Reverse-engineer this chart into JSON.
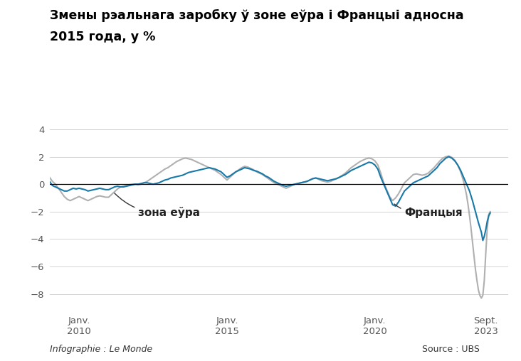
{
  "title_line1": "Змены рэальнага заробку ў зоне еўра і Францыі адносна",
  "title_line2": "2015 года, у %",
  "xlabel_ticks": [
    {
      "label": "Janv.\n2010",
      "x": 2010.0
    },
    {
      "label": "Janv.\n2015",
      "x": 2015.0
    },
    {
      "label": "Janv.\n2020",
      "x": 2020.0
    },
    {
      "label": "Sept.\n2023",
      "x": 2023.75
    }
  ],
  "yticks": [
    4,
    2,
    0,
    -2,
    -4,
    -6,
    -8
  ],
  "ylim": [
    -9.2,
    5.0
  ],
  "xlim": [
    2009.0,
    2024.5
  ],
  "color_eurozone": "#1878a8",
  "color_france": "#b0b0b0",
  "label_eurozone": "зона еўра",
  "label_france": "Францыя",
  "footer_left": "Infographie : Le Monde",
  "footer_right": "Source : UBS",
  "eurozone_data": [
    [
      2009.0,
      0.2
    ],
    [
      2009.1,
      -0.1
    ],
    [
      2009.2,
      -0.2
    ],
    [
      2009.3,
      -0.3
    ],
    [
      2009.4,
      -0.4
    ],
    [
      2009.5,
      -0.5
    ],
    [
      2009.6,
      -0.5
    ],
    [
      2009.7,
      -0.4
    ],
    [
      2009.8,
      -0.3
    ],
    [
      2009.9,
      -0.35
    ],
    [
      2010.0,
      -0.3
    ],
    [
      2010.1,
      -0.35
    ],
    [
      2010.2,
      -0.4
    ],
    [
      2010.3,
      -0.5
    ],
    [
      2010.4,
      -0.45
    ],
    [
      2010.5,
      -0.4
    ],
    [
      2010.6,
      -0.35
    ],
    [
      2010.7,
      -0.3
    ],
    [
      2010.8,
      -0.35
    ],
    [
      2010.9,
      -0.4
    ],
    [
      2011.0,
      -0.4
    ],
    [
      2011.1,
      -0.3
    ],
    [
      2011.2,
      -0.2
    ],
    [
      2011.3,
      -0.15
    ],
    [
      2011.4,
      -0.2
    ],
    [
      2011.5,
      -0.2
    ],
    [
      2011.6,
      -0.15
    ],
    [
      2011.7,
      -0.1
    ],
    [
      2011.8,
      -0.05
    ],
    [
      2011.9,
      0.0
    ],
    [
      2012.0,
      0.0
    ],
    [
      2012.1,
      0.05
    ],
    [
      2012.2,
      0.1
    ],
    [
      2012.3,
      0.1
    ],
    [
      2012.4,
      0.05
    ],
    [
      2012.5,
      0.0
    ],
    [
      2012.6,
      0.05
    ],
    [
      2012.7,
      0.1
    ],
    [
      2012.8,
      0.2
    ],
    [
      2012.9,
      0.3
    ],
    [
      2013.0,
      0.35
    ],
    [
      2013.1,
      0.45
    ],
    [
      2013.2,
      0.5
    ],
    [
      2013.3,
      0.55
    ],
    [
      2013.4,
      0.6
    ],
    [
      2013.5,
      0.65
    ],
    [
      2013.6,
      0.75
    ],
    [
      2013.7,
      0.85
    ],
    [
      2013.8,
      0.9
    ],
    [
      2013.9,
      0.95
    ],
    [
      2014.0,
      1.0
    ],
    [
      2014.1,
      1.05
    ],
    [
      2014.2,
      1.1
    ],
    [
      2014.3,
      1.15
    ],
    [
      2014.4,
      1.2
    ],
    [
      2014.5,
      1.15
    ],
    [
      2014.6,
      1.1
    ],
    [
      2014.7,
      1.0
    ],
    [
      2014.8,
      0.9
    ],
    [
      2014.9,
      0.7
    ],
    [
      2015.0,
      0.5
    ],
    [
      2015.1,
      0.6
    ],
    [
      2015.2,
      0.75
    ],
    [
      2015.3,
      0.9
    ],
    [
      2015.4,
      1.0
    ],
    [
      2015.5,
      1.1
    ],
    [
      2015.6,
      1.2
    ],
    [
      2015.7,
      1.15
    ],
    [
      2015.8,
      1.1
    ],
    [
      2015.9,
      1.0
    ],
    [
      2016.0,
      0.95
    ],
    [
      2016.1,
      0.85
    ],
    [
      2016.2,
      0.75
    ],
    [
      2016.3,
      0.6
    ],
    [
      2016.4,
      0.5
    ],
    [
      2016.5,
      0.35
    ],
    [
      2016.6,
      0.2
    ],
    [
      2016.7,
      0.1
    ],
    [
      2016.8,
      0.0
    ],
    [
      2016.9,
      -0.1
    ],
    [
      2017.0,
      -0.15
    ],
    [
      2017.1,
      -0.1
    ],
    [
      2017.2,
      -0.05
    ],
    [
      2017.3,
      0.0
    ],
    [
      2017.4,
      0.05
    ],
    [
      2017.5,
      0.1
    ],
    [
      2017.6,
      0.15
    ],
    [
      2017.7,
      0.2
    ],
    [
      2017.8,
      0.3
    ],
    [
      2017.9,
      0.4
    ],
    [
      2018.0,
      0.45
    ],
    [
      2018.1,
      0.4
    ],
    [
      2018.2,
      0.35
    ],
    [
      2018.3,
      0.3
    ],
    [
      2018.4,
      0.25
    ],
    [
      2018.5,
      0.3
    ],
    [
      2018.6,
      0.35
    ],
    [
      2018.7,
      0.4
    ],
    [
      2018.8,
      0.5
    ],
    [
      2018.9,
      0.6
    ],
    [
      2019.0,
      0.7
    ],
    [
      2019.1,
      0.85
    ],
    [
      2019.2,
      1.0
    ],
    [
      2019.3,
      1.1
    ],
    [
      2019.4,
      1.2
    ],
    [
      2019.5,
      1.3
    ],
    [
      2019.6,
      1.4
    ],
    [
      2019.7,
      1.5
    ],
    [
      2019.8,
      1.6
    ],
    [
      2019.9,
      1.55
    ],
    [
      2020.0,
      1.4
    ],
    [
      2020.1,
      1.1
    ],
    [
      2020.2,
      0.5
    ],
    [
      2020.3,
      0.0
    ],
    [
      2020.4,
      -0.5
    ],
    [
      2020.5,
      -1.0
    ],
    [
      2020.6,
      -1.5
    ],
    [
      2020.7,
      -1.6
    ],
    [
      2020.8,
      -1.3
    ],
    [
      2020.9,
      -0.9
    ],
    [
      2021.0,
      -0.5
    ],
    [
      2021.1,
      -0.3
    ],
    [
      2021.2,
      -0.1
    ],
    [
      2021.3,
      0.1
    ],
    [
      2021.4,
      0.2
    ],
    [
      2021.5,
      0.3
    ],
    [
      2021.6,
      0.4
    ],
    [
      2021.7,
      0.5
    ],
    [
      2021.8,
      0.6
    ],
    [
      2021.9,
      0.8
    ],
    [
      2022.0,
      1.0
    ],
    [
      2022.1,
      1.2
    ],
    [
      2022.2,
      1.5
    ],
    [
      2022.3,
      1.7
    ],
    [
      2022.4,
      1.9
    ],
    [
      2022.5,
      2.0
    ],
    [
      2022.6,
      1.9
    ],
    [
      2022.7,
      1.7
    ],
    [
      2022.8,
      1.4
    ],
    [
      2022.9,
      1.0
    ],
    [
      2023.0,
      0.5
    ],
    [
      2023.1,
      0.0
    ],
    [
      2023.2,
      -0.5
    ],
    [
      2023.3,
      -1.2
    ],
    [
      2023.4,
      -2.0
    ],
    [
      2023.5,
      -2.8
    ],
    [
      2023.6,
      -3.5
    ],
    [
      2023.65,
      -4.1
    ],
    [
      2023.7,
      -3.8
    ],
    [
      2023.75,
      -3.3
    ],
    [
      2023.8,
      -2.7
    ],
    [
      2023.85,
      -2.3
    ],
    [
      2023.9,
      -2.1
    ]
  ],
  "france_data": [
    [
      2009.0,
      0.5
    ],
    [
      2009.1,
      0.2
    ],
    [
      2009.2,
      0.0
    ],
    [
      2009.3,
      -0.3
    ],
    [
      2009.4,
      -0.6
    ],
    [
      2009.5,
      -0.9
    ],
    [
      2009.6,
      -1.1
    ],
    [
      2009.7,
      -1.2
    ],
    [
      2009.8,
      -1.1
    ],
    [
      2009.9,
      -1.0
    ],
    [
      2010.0,
      -0.9
    ],
    [
      2010.1,
      -1.0
    ],
    [
      2010.2,
      -1.1
    ],
    [
      2010.3,
      -1.2
    ],
    [
      2010.4,
      -1.1
    ],
    [
      2010.5,
      -1.0
    ],
    [
      2010.6,
      -0.9
    ],
    [
      2010.7,
      -0.85
    ],
    [
      2010.8,
      -0.9
    ],
    [
      2010.9,
      -0.95
    ],
    [
      2011.0,
      -0.95
    ],
    [
      2011.1,
      -0.75
    ],
    [
      2011.2,
      -0.55
    ],
    [
      2011.3,
      -0.35
    ],
    [
      2011.4,
      -0.2
    ],
    [
      2011.5,
      -0.15
    ],
    [
      2011.6,
      -0.1
    ],
    [
      2011.7,
      -0.05
    ],
    [
      2011.8,
      0.0
    ],
    [
      2011.9,
      0.0
    ],
    [
      2012.0,
      -0.05
    ],
    [
      2012.1,
      0.0
    ],
    [
      2012.2,
      0.1
    ],
    [
      2012.3,
      0.2
    ],
    [
      2012.4,
      0.35
    ],
    [
      2012.5,
      0.5
    ],
    [
      2012.6,
      0.65
    ],
    [
      2012.7,
      0.8
    ],
    [
      2012.8,
      0.95
    ],
    [
      2012.9,
      1.1
    ],
    [
      2013.0,
      1.2
    ],
    [
      2013.1,
      1.35
    ],
    [
      2013.2,
      1.5
    ],
    [
      2013.3,
      1.65
    ],
    [
      2013.4,
      1.75
    ],
    [
      2013.5,
      1.85
    ],
    [
      2013.6,
      1.9
    ],
    [
      2013.7,
      1.85
    ],
    [
      2013.8,
      1.8
    ],
    [
      2013.9,
      1.7
    ],
    [
      2014.0,
      1.6
    ],
    [
      2014.1,
      1.5
    ],
    [
      2014.2,
      1.4
    ],
    [
      2014.3,
      1.3
    ],
    [
      2014.4,
      1.2
    ],
    [
      2014.5,
      1.1
    ],
    [
      2014.6,
      1.0
    ],
    [
      2014.7,
      0.85
    ],
    [
      2014.8,
      0.7
    ],
    [
      2014.9,
      0.5
    ],
    [
      2015.0,
      0.3
    ],
    [
      2015.1,
      0.5
    ],
    [
      2015.2,
      0.7
    ],
    [
      2015.3,
      0.9
    ],
    [
      2015.4,
      1.05
    ],
    [
      2015.5,
      1.2
    ],
    [
      2015.6,
      1.3
    ],
    [
      2015.7,
      1.25
    ],
    [
      2015.8,
      1.15
    ],
    [
      2015.9,
      1.05
    ],
    [
      2016.0,
      0.9
    ],
    [
      2016.1,
      0.8
    ],
    [
      2016.2,
      0.7
    ],
    [
      2016.3,
      0.55
    ],
    [
      2016.4,
      0.4
    ],
    [
      2016.5,
      0.25
    ],
    [
      2016.6,
      0.1
    ],
    [
      2016.7,
      0.0
    ],
    [
      2016.8,
      -0.1
    ],
    [
      2016.9,
      -0.2
    ],
    [
      2017.0,
      -0.3
    ],
    [
      2017.1,
      -0.2
    ],
    [
      2017.2,
      -0.1
    ],
    [
      2017.3,
      0.0
    ],
    [
      2017.4,
      0.05
    ],
    [
      2017.5,
      0.1
    ],
    [
      2017.6,
      0.15
    ],
    [
      2017.7,
      0.2
    ],
    [
      2017.8,
      0.3
    ],
    [
      2017.9,
      0.4
    ],
    [
      2018.0,
      0.45
    ],
    [
      2018.1,
      0.35
    ],
    [
      2018.2,
      0.25
    ],
    [
      2018.3,
      0.2
    ],
    [
      2018.4,
      0.15
    ],
    [
      2018.5,
      0.2
    ],
    [
      2018.6,
      0.3
    ],
    [
      2018.7,
      0.4
    ],
    [
      2018.8,
      0.5
    ],
    [
      2018.9,
      0.65
    ],
    [
      2019.0,
      0.8
    ],
    [
      2019.1,
      1.0
    ],
    [
      2019.2,
      1.2
    ],
    [
      2019.3,
      1.35
    ],
    [
      2019.4,
      1.5
    ],
    [
      2019.5,
      1.65
    ],
    [
      2019.6,
      1.75
    ],
    [
      2019.7,
      1.85
    ],
    [
      2019.8,
      1.9
    ],
    [
      2019.9,
      1.85
    ],
    [
      2020.0,
      1.7
    ],
    [
      2020.1,
      1.4
    ],
    [
      2020.2,
      0.8
    ],
    [
      2020.3,
      0.1
    ],
    [
      2020.4,
      -0.4
    ],
    [
      2020.5,
      -0.9
    ],
    [
      2020.6,
      -1.2
    ],
    [
      2020.7,
      -1.0
    ],
    [
      2020.8,
      -0.7
    ],
    [
      2020.9,
      -0.3
    ],
    [
      2021.0,
      0.1
    ],
    [
      2021.1,
      0.3
    ],
    [
      2021.2,
      0.5
    ],
    [
      2021.3,
      0.7
    ],
    [
      2021.4,
      0.75
    ],
    [
      2021.5,
      0.7
    ],
    [
      2021.6,
      0.65
    ],
    [
      2021.7,
      0.7
    ],
    [
      2021.8,
      0.8
    ],
    [
      2021.9,
      1.0
    ],
    [
      2022.0,
      1.2
    ],
    [
      2022.1,
      1.45
    ],
    [
      2022.2,
      1.7
    ],
    [
      2022.3,
      1.9
    ],
    [
      2022.4,
      2.0
    ],
    [
      2022.5,
      2.05
    ],
    [
      2022.6,
      1.95
    ],
    [
      2022.7,
      1.75
    ],
    [
      2022.8,
      1.4
    ],
    [
      2022.9,
      0.9
    ],
    [
      2023.0,
      0.2
    ],
    [
      2023.05,
      -0.3
    ],
    [
      2023.1,
      -0.8
    ],
    [
      2023.15,
      -1.5
    ],
    [
      2023.2,
      -2.3
    ],
    [
      2023.25,
      -3.2
    ],
    [
      2023.3,
      -4.2
    ],
    [
      2023.35,
      -5.2
    ],
    [
      2023.4,
      -6.2
    ],
    [
      2023.45,
      -7.0
    ],
    [
      2023.5,
      -7.7
    ],
    [
      2023.55,
      -8.1
    ],
    [
      2023.6,
      -8.3
    ],
    [
      2023.65,
      -8.1
    ],
    [
      2023.7,
      -7.0
    ],
    [
      2023.75,
      -5.0
    ],
    [
      2023.8,
      -3.2
    ],
    [
      2023.85,
      -2.2
    ],
    [
      2023.9,
      -2.0
    ]
  ]
}
